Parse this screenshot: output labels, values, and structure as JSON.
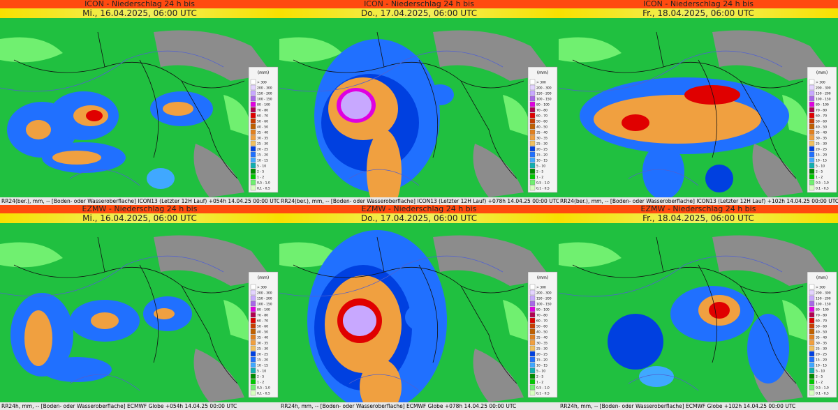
{
  "panels": [
    {
      "title": "ICON - Niederschlag 24 h bis",
      "date": "Mi., 16.04.2025, 06:00 UTC",
      "footer": "RR24(ber.), mm, -- [Boden- oder Wasseroberflache] ICON13 (Letzter 12H Lauf) +054h  14.04.25 00:00 UTC"
    },
    {
      "title": "ICON - Niederschlag 24 h bis",
      "date": "Do., 17.04.2025, 06:00 UTC",
      "footer": "RR24(ber.), mm, -- [Boden- oder Wasseroberflache] ICON13 (Letzter 12H Lauf) +078h  14.04.25 00:00 UTC"
    },
    {
      "title": "ICON - Niederschlag 24 h bis",
      "date": "Fr., 18.04.2025, 06:00 UTC",
      "footer": "RR24(ber.), mm, -- [Boden- oder Wasseroberflache] ICON13 (Letzter 12H Lauf) +102h  14.04.25 00:00 UTC"
    },
    {
      "title": "EZMW - Niederschlag 24 h bis",
      "date": "Mi., 16.04.2025, 06:00 UTC",
      "footer": "RR24h, mm, -- [Boden- oder Wasseroberflache] ECMWF Globe +054h  14.04.25 00:00 UTC"
    },
    {
      "title": "EZMW - Niederschlag 24 h bis",
      "date": "Do., 17.04.2025, 06:00 UTC",
      "footer": "RR24h, mm, -- [Boden- oder Wasseroberflache] ECMWF Globe +078h  14.04.25 00:00 UTC"
    },
    {
      "title": "EZMW - Niederschlag 24 h bis",
      "date": "Fr., 18.04.2025, 06:00 UTC",
      "footer": "RR24h, mm, -- [Boden- oder Wasseroberflache] ECMWF Globe +102h  14.04.25 00:00 UTC"
    }
  ],
  "legend": {
    "unit": "(mm)",
    "labels": [
      "> 300",
      "200 - 300",
      "150 - 200",
      "100 - 150",
      "80 - 100",
      "70 - 80",
      "60 - 70",
      "50 - 60",
      "40 - 50",
      "35 - 40",
      "30 - 35",
      "25 - 30",
      "20 - 25",
      "15 - 20",
      "10 - 15",
      "5 - 10",
      "2 - 5",
      "1 - 2",
      "0,5 - 1,0",
      "0,1 - 0,5"
    ],
    "colors": [
      "#ffffff",
      "#e4d4ff",
      "#c8a8ff",
      "#a868e8",
      "#e000e0",
      "#b00050",
      "#e00000",
      "#c83c00",
      "#c06000",
      "#e08020",
      "#f0a040",
      "#f0c060",
      "#0040e0",
      "#2070ff",
      "#40a8ff",
      "#10b0b0",
      "#008c00",
      "#00c800",
      "#70f070",
      "#d8ffc0"
    ]
  }
}
